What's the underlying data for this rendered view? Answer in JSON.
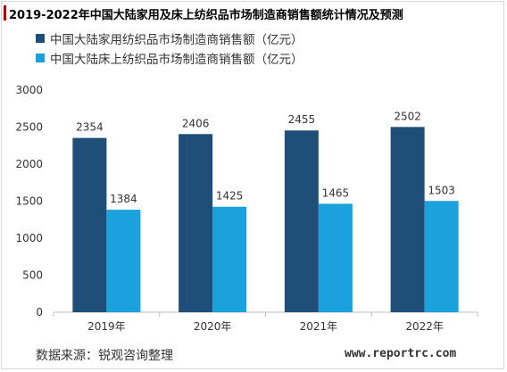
{
  "colors": {
    "series1": "#1f4e79",
    "series2": "#1ba1db",
    "axis_text": "#333333",
    "grid": "#d9d9d9"
  },
  "source_text": "数据来源：锐观咨询整理",
  "website": "www.reportrc.com",
  "chart_data": {
    "type": "bar",
    "title": "2019-2022年中国大陆家用及床上纺织品市场制造商销售额统计情况及预测",
    "categories": [
      "2019年",
      "2020年",
      "2021年",
      "2022年"
    ],
    "series": [
      {
        "name": "中国大陆家用纺织品市场制造商销售额（亿元）",
        "values": [
          2354,
          2406,
          2455,
          2502
        ],
        "labels": [
          "2354",
          "2406",
          "2455",
          "2502"
        ]
      },
      {
        "name": "中国大陆床上纺织品市场制造商销售额（亿元）",
        "values": [
          1384,
          1425,
          1465,
          1503
        ],
        "labels": [
          "1384",
          "1425",
          "1465",
          "1503"
        ]
      }
    ],
    "ylim": [
      0,
      3000
    ],
    "yticks": [
      0,
      500,
      1000,
      1500,
      2000,
      2500,
      3000
    ],
    "ytick_labels": [
      "0",
      "500",
      "1000",
      "1500",
      "2000",
      "2500",
      "3000"
    ],
    "grid": false,
    "legend_position": "top-left",
    "xlabel": "",
    "ylabel": ""
  }
}
